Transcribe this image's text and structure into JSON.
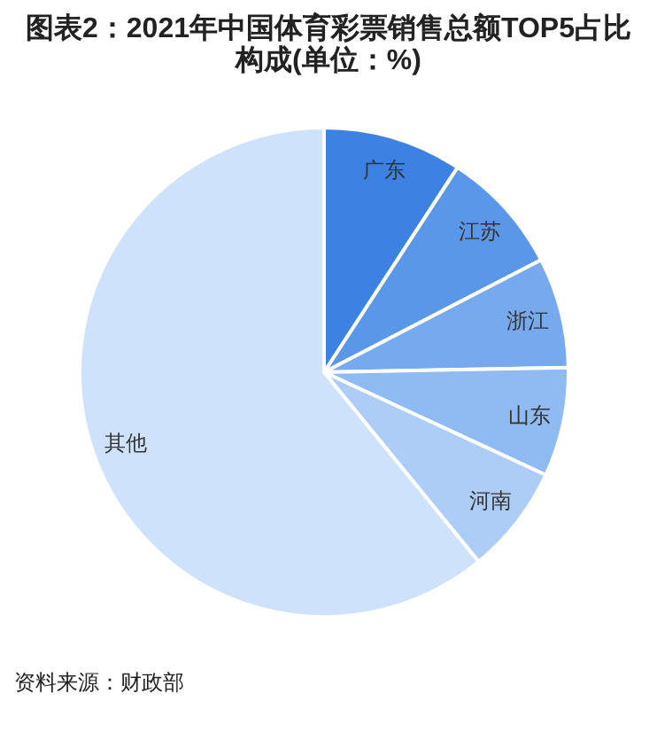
{
  "chart_data": {
    "type": "pie",
    "title": "图表2：2021年中国体育彩票销售总额TOP5占比构成(单位：%)",
    "categories": [
      "广东",
      "江苏",
      "浙江",
      "山东",
      "河南",
      "其他"
    ],
    "values": [
      9.2,
      8.2,
      7.3,
      7.2,
      7.2,
      60.9
    ],
    "colors": [
      "#3d82e2",
      "#5b97e9",
      "#76a9ee",
      "#8fbaf2",
      "#adcdf7",
      "#cfe2fb"
    ],
    "annotations": [
      "资料来源：财政部"
    ]
  }
}
